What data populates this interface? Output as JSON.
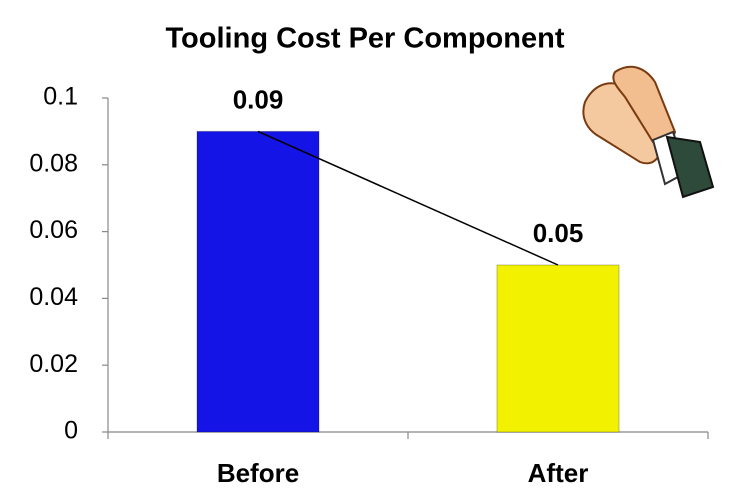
{
  "chart_data": {
    "type": "bar",
    "title": "Tooling Cost Per Component",
    "categories": [
      "Before",
      "After"
    ],
    "values": [
      0.09,
      0.05
    ],
    "colors": [
      "#1414e6",
      "#f2f200"
    ],
    "ylim": [
      0,
      0.1
    ],
    "yticks": [
      0,
      0.02,
      0.04,
      0.06,
      0.08,
      0.1
    ],
    "trend_line": true
  }
}
